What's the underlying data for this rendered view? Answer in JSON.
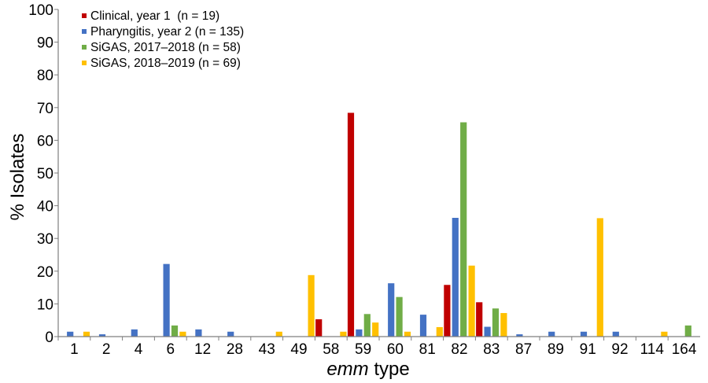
{
  "chart_data": {
    "type": "bar",
    "categories": [
      "1",
      "2",
      "4",
      "6",
      "12",
      "28",
      "43",
      "49",
      "58",
      "59",
      "60",
      "81",
      "82",
      "83",
      "87",
      "89",
      "91",
      "92",
      "114",
      "164"
    ],
    "series": [
      {
        "name": "Clinical, year 1  (n = 19)",
        "color": "#c00000",
        "values": [
          0,
          0,
          0,
          0,
          0,
          0,
          0,
          0,
          5.3,
          68.4,
          0,
          0,
          15.8,
          10.5,
          0,
          0,
          0,
          0,
          0,
          0
        ]
      },
      {
        "name": "Pharyngitis, year 2 (n = 135)",
        "color": "#4472c4",
        "values": [
          1.5,
          0.7,
          2.2,
          22.2,
          2.2,
          1.5,
          0,
          0,
          0,
          2.2,
          16.3,
          6.7,
          36.3,
          3.0,
          0.7,
          1.5,
          1.5,
          1.5,
          0,
          0
        ]
      },
      {
        "name": "SiGAS, 2017–2018 (n = 58)",
        "color": "#70ad47",
        "values": [
          0,
          0,
          0,
          3.4,
          0,
          0,
          0,
          0,
          0,
          6.9,
          12.1,
          0,
          65.5,
          8.6,
          0,
          0,
          0,
          0,
          0,
          3.4
        ]
      },
      {
        "name": "SiGAS, 2018–2019 (n = 69)",
        "color": "#ffc000",
        "values": [
          1.5,
          0,
          0,
          1.5,
          0,
          0,
          1.5,
          18.8,
          1.5,
          4.3,
          1.5,
          2.9,
          21.7,
          7.2,
          0,
          0,
          36.2,
          0,
          1.5,
          0
        ]
      }
    ],
    "ylim": [
      0,
      100
    ],
    "yticks": [
      0,
      10,
      20,
      30,
      40,
      50,
      60,
      70,
      80,
      90,
      100
    ],
    "ylabel": "% Isolates",
    "xlabel_italic": "emm",
    "xlabel_rest": " type",
    "legend_position": "top-left",
    "grid": false
  }
}
